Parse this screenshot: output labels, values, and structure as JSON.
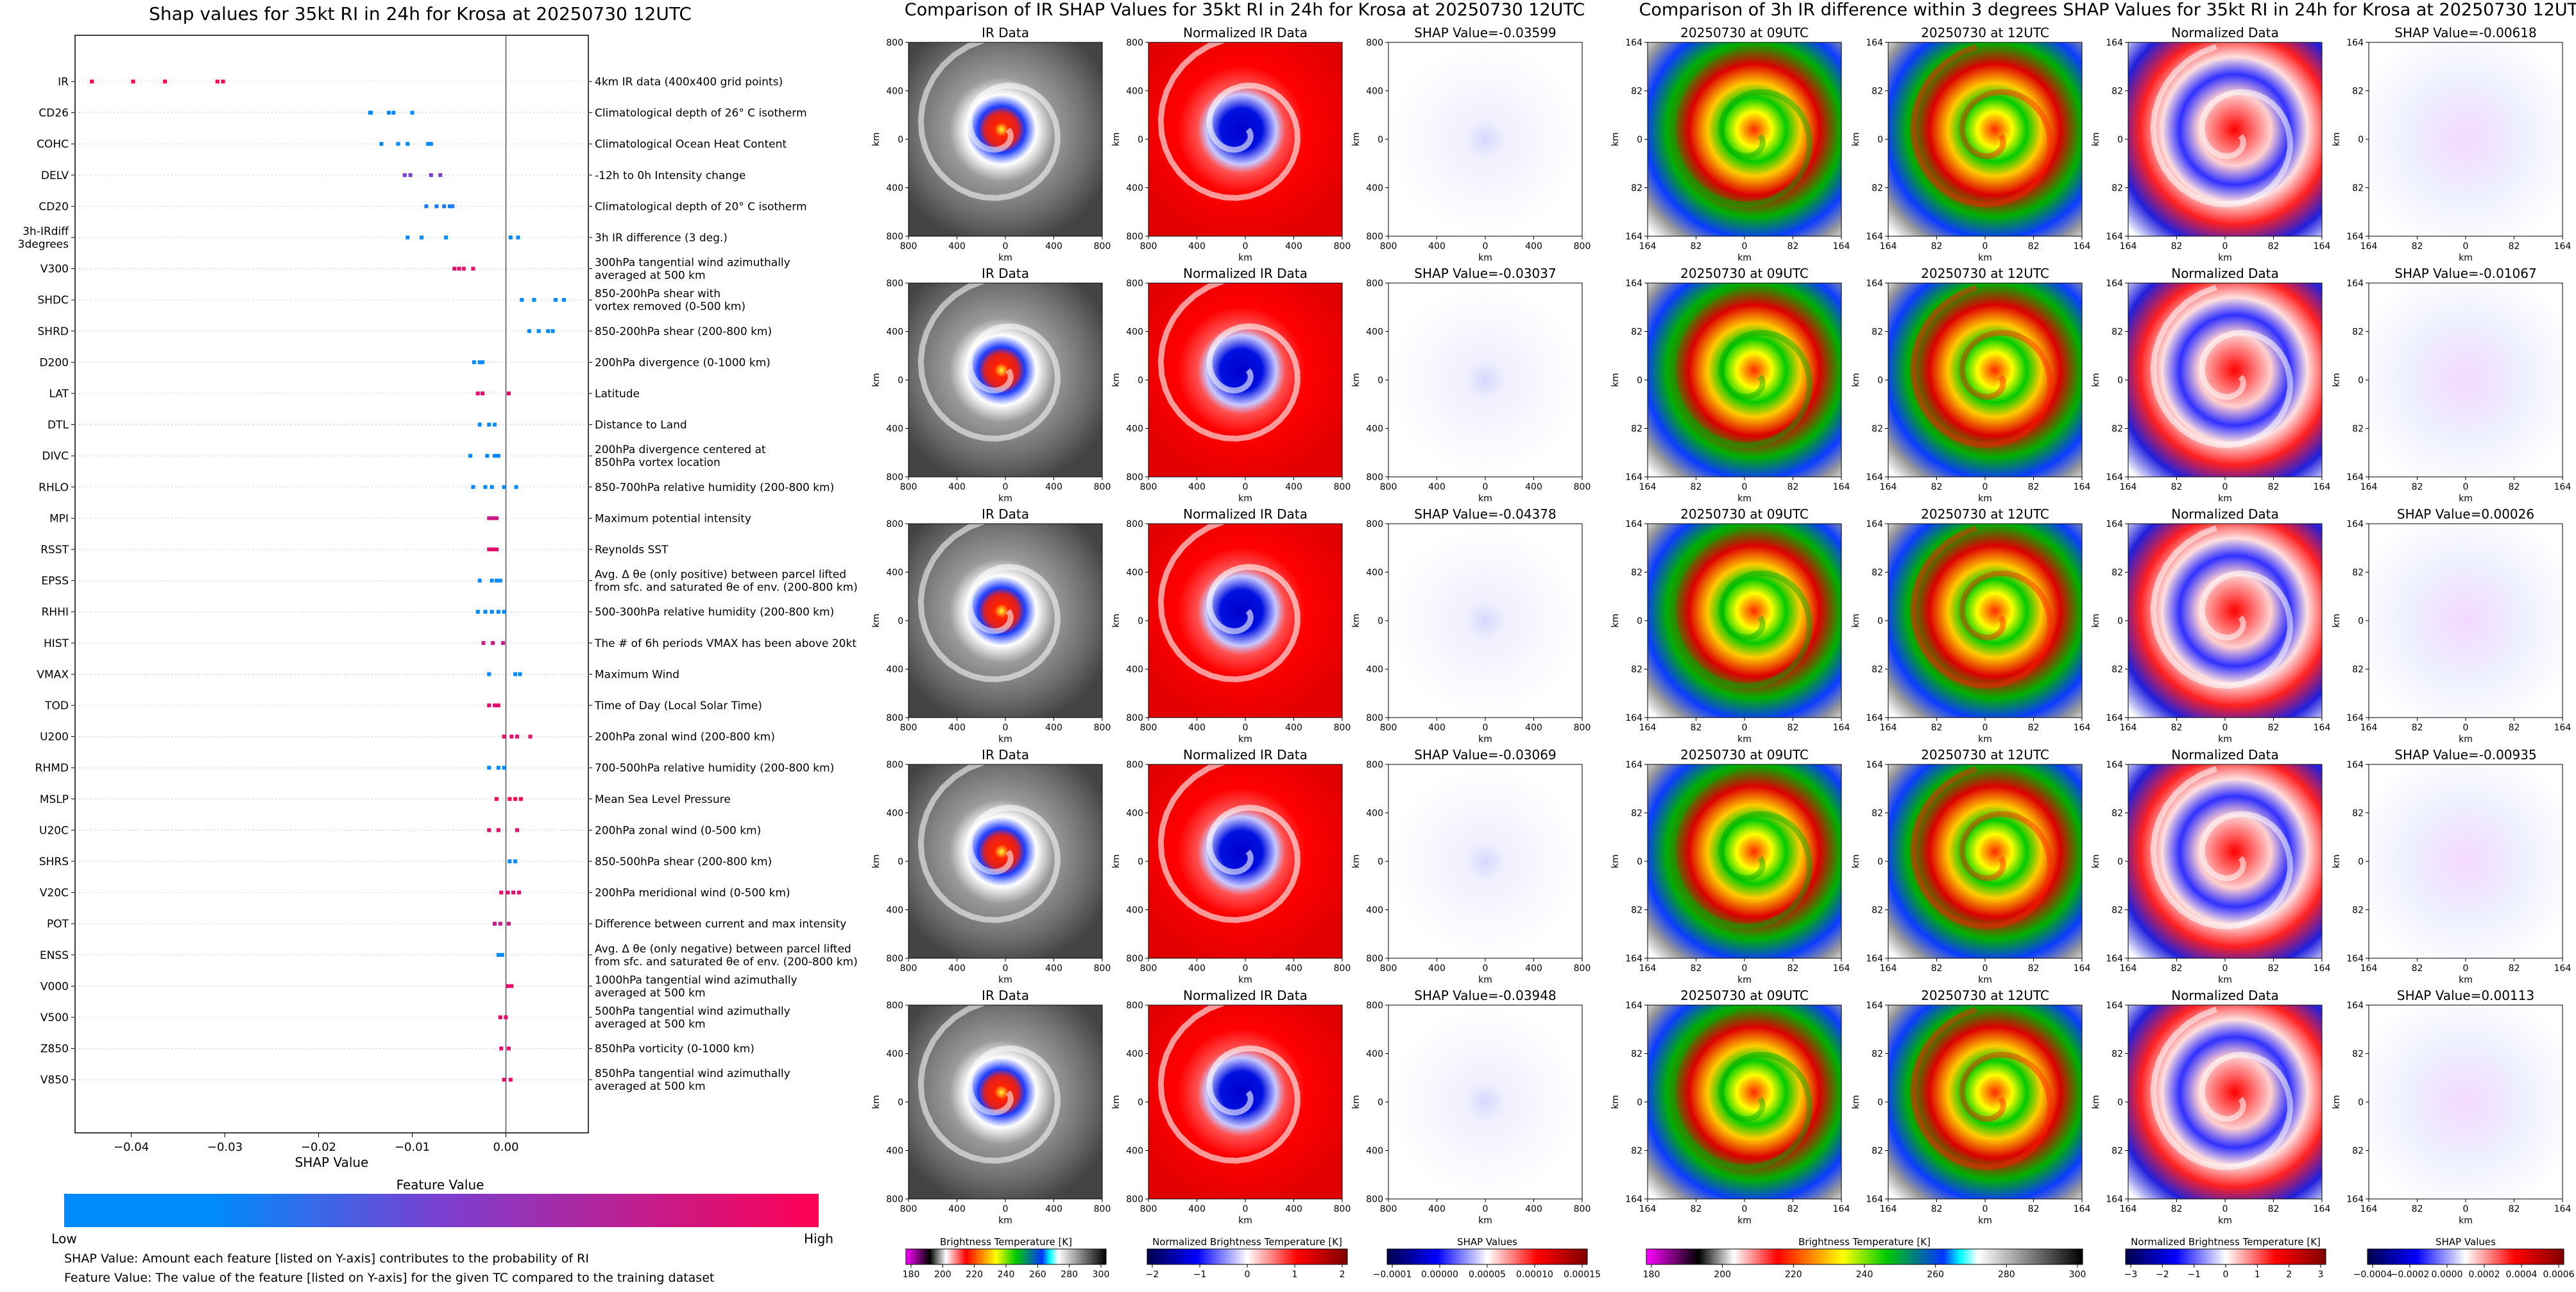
{
  "left_title": "Shap values for 35kt RI in 24h for Krosa at 20250730 12UTC",
  "mid_title": "Comparison of IR SHAP Values for 35kt RI in 24h for Krosa at 20250730 12UTC",
  "right_title": "Comparison of 3h IR difference within 3 degrees SHAP Values for 35kt RI in 24h for Krosa at 20250730 12UTC",
  "colorbar": {
    "label": "Feature Value",
    "low": "Low",
    "high": "High"
  },
  "notes": [
    "SHAP Value: Amount each feature [listed on Y-axis] contributes to the probability of RI",
    "Feature Value: The value of the feature [listed on Y-axis] for the given TC compared to the training dataset"
  ],
  "chart_data": {
    "type": "scatter",
    "title": "Shap values for 35kt RI in 24h for Krosa at 20250730 12UTC",
    "xlabel": "SHAP Value",
    "xlim": [
      -0.046,
      0.0088
    ],
    "xticks": [
      "−0.04",
      "−0.03",
      "−0.02",
      "−0.01",
      "0.00"
    ],
    "xtick_values": [
      -0.04,
      -0.03,
      -0.02,
      -0.01,
      0.0
    ],
    "colors": {
      "low": "#008afb",
      "mid": "#7a3fd0",
      "high": "#ff0053"
    },
    "features": [
      {
        "name": "IR",
        "desc": [
          "4km IR data (400x400 grid points)"
        ],
        "points": [
          [
            -0.0442,
            1
          ],
          [
            -0.0398,
            1
          ],
          [
            -0.0364,
            1
          ],
          [
            -0.0308,
            1
          ],
          [
            -0.0302,
            1
          ]
        ]
      },
      {
        "name": "CD26",
        "desc": [
          "Climatological depth of 26° C isotherm"
        ],
        "points": [
          [
            -0.0145,
            0
          ],
          [
            -0.0125,
            0
          ],
          [
            -0.012,
            0
          ],
          [
            -0.01,
            0
          ],
          [
            -0.0144,
            0
          ]
        ]
      },
      {
        "name": "COHC",
        "desc": [
          "Climatological Ocean Heat Content"
        ],
        "points": [
          [
            -0.0133,
            0
          ],
          [
            -0.0115,
            0
          ],
          [
            -0.0105,
            0
          ],
          [
            -0.0083,
            0
          ],
          [
            -0.008,
            0
          ]
        ]
      },
      {
        "name": "DELV",
        "desc": [
          "-12h to 0h Intensity change"
        ],
        "points": [
          [
            -0.0108,
            0.5
          ],
          [
            -0.0102,
            0.5
          ],
          [
            -0.008,
            0.5
          ],
          [
            -0.007,
            0.5
          ]
        ]
      },
      {
        "name": "CD20",
        "desc": [
          "Climatological depth of 20° C isotherm"
        ],
        "points": [
          [
            -0.0085,
            0.1
          ],
          [
            -0.0074,
            0.1
          ],
          [
            -0.0066,
            0.1
          ],
          [
            -0.006,
            0.1
          ],
          [
            -0.0057,
            0.1
          ]
        ]
      },
      {
        "name": "3h-IRdiff\n3degrees",
        "desc": [
          "3h IR difference (3 deg.)"
        ],
        "points": [
          [
            -0.0105,
            0
          ],
          [
            -0.009,
            0
          ],
          [
            -0.0064,
            0
          ],
          [
            0.0005,
            0
          ],
          [
            0.0013,
            0
          ]
        ]
      },
      {
        "name": "V300",
        "desc": [
          "300hPa tangential wind azimuthally",
          "averaged at 500 km"
        ],
        "points": [
          [
            -0.0055,
            0.9
          ],
          [
            -0.005,
            0.9
          ],
          [
            -0.0045,
            0.9
          ],
          [
            -0.0035,
            0.9
          ]
        ]
      },
      {
        "name": "SHDC",
        "desc": [
          "850-200hPa shear with",
          "vortex removed (0-500 km)"
        ],
        "points": [
          [
            0.0017,
            0
          ],
          [
            0.003,
            0
          ],
          [
            0.0053,
            0
          ],
          [
            0.0062,
            0
          ]
        ]
      },
      {
        "name": "SHRD",
        "desc": [
          "850-200hPa shear (200-800 km)"
        ],
        "points": [
          [
            0.0025,
            0
          ],
          [
            0.0035,
            0
          ],
          [
            0.0045,
            0
          ],
          [
            0.005,
            0
          ]
        ]
      },
      {
        "name": "D200",
        "desc": [
          "200hPa divergence (0-1000 km)"
        ],
        "points": [
          [
            -0.0034,
            0
          ],
          [
            -0.0028,
            0
          ],
          [
            -0.0025,
            0
          ]
        ]
      },
      {
        "name": "LAT",
        "desc": [
          "Latitude"
        ],
        "points": [
          [
            -0.003,
            0.9
          ],
          [
            -0.0025,
            0.9
          ],
          [
            0.0003,
            0.9
          ]
        ]
      },
      {
        "name": "DTL",
        "desc": [
          "Distance to Land"
        ],
        "points": [
          [
            -0.0028,
            0
          ],
          [
            -0.0018,
            0
          ],
          [
            -0.0012,
            0
          ]
        ]
      },
      {
        "name": "DIVC",
        "desc": [
          "200hPa divergence centered at",
          "850hPa vortex location"
        ],
        "points": [
          [
            -0.0038,
            0
          ],
          [
            -0.002,
            0
          ],
          [
            -0.0012,
            0
          ],
          [
            -0.0008,
            0
          ]
        ]
      },
      {
        "name": "RHLO",
        "desc": [
          "850-700hPa relative humidity (200-800 km)"
        ],
        "points": [
          [
            -0.0035,
            0
          ],
          [
            -0.0022,
            0
          ],
          [
            -0.0015,
            0
          ],
          [
            -0.0002,
            0
          ],
          [
            0.0011,
            0
          ]
        ]
      },
      {
        "name": "MPI",
        "desc": [
          "Maximum potential intensity"
        ],
        "points": [
          [
            -0.0018,
            0.8
          ],
          [
            -0.0014,
            0.8
          ],
          [
            -0.001,
            0.8
          ]
        ]
      },
      {
        "name": "RSST",
        "desc": [
          "Reynolds SST"
        ],
        "points": [
          [
            -0.0018,
            0.9
          ],
          [
            -0.0014,
            0.9
          ],
          [
            -0.001,
            0.9
          ]
        ]
      },
      {
        "name": "EPSS",
        "desc": [
          "Avg. Δ θe (only positive) between parcel lifted",
          "from sfc. and saturated θe of env. (200-800 km)"
        ],
        "points": [
          [
            -0.0028,
            0
          ],
          [
            -0.0015,
            0
          ],
          [
            -0.001,
            0
          ],
          [
            -0.0006,
            0
          ]
        ]
      },
      {
        "name": "RHHI",
        "desc": [
          "500-300hPa relative humidity (200-800 km)"
        ],
        "points": [
          [
            -0.003,
            0
          ],
          [
            -0.0022,
            0
          ],
          [
            -0.0015,
            0
          ],
          [
            -0.0008,
            0
          ],
          [
            -0.0002,
            0
          ]
        ]
      },
      {
        "name": "HIST",
        "desc": [
          "The # of 6h periods VMAX has been above 20kt"
        ],
        "points": [
          [
            -0.0024,
            0.8
          ],
          [
            -0.0014,
            0.8
          ],
          [
            -0.0003,
            0.8
          ]
        ]
      },
      {
        "name": "VMAX",
        "desc": [
          "Maximum Wind"
        ],
        "points": [
          [
            -0.0018,
            0
          ],
          [
            0.001,
            0
          ],
          [
            0.0015,
            0
          ]
        ]
      },
      {
        "name": "TOD",
        "desc": [
          "Time of Day (Local Solar Time)"
        ],
        "points": [
          [
            -0.0018,
            0.9
          ],
          [
            -0.0012,
            0.9
          ],
          [
            -0.0008,
            0.9
          ]
        ]
      },
      {
        "name": "U200",
        "desc": [
          "200hPa zonal wind (200-800 km)"
        ],
        "points": [
          [
            -0.0002,
            0.9
          ],
          [
            0.0006,
            0.9
          ],
          [
            0.0012,
            0.9
          ],
          [
            0.0026,
            0.9
          ]
        ]
      },
      {
        "name": "RHMD",
        "desc": [
          "700-500hPa relative humidity (200-800 km)"
        ],
        "points": [
          [
            -0.0018,
            0
          ],
          [
            -0.0008,
            0
          ],
          [
            -0.0002,
            0
          ]
        ]
      },
      {
        "name": "MSLP",
        "desc": [
          "Mean Sea Level Pressure"
        ],
        "points": [
          [
            -0.001,
            1
          ],
          [
            0.0004,
            1
          ],
          [
            0.001,
            1
          ],
          [
            0.0016,
            1
          ]
        ]
      },
      {
        "name": "U20C",
        "desc": [
          "200hPa zonal wind (0-500 km)"
        ],
        "points": [
          [
            -0.0018,
            0.9
          ],
          [
            -0.0008,
            0.9
          ],
          [
            0.0012,
            0.9
          ]
        ]
      },
      {
        "name": "SHRS",
        "desc": [
          "850-500hPa shear (200-800 km)"
        ],
        "points": [
          [
            0.0004,
            0
          ],
          [
            0.001,
            0
          ]
        ]
      },
      {
        "name": "V20C",
        "desc": [
          "200hPa meridional wind (0-500 km)"
        ],
        "points": [
          [
            -0.0005,
            0.9
          ],
          [
            0.0002,
            0.9
          ],
          [
            0.0008,
            0.9
          ],
          [
            0.0014,
            0.9
          ]
        ]
      },
      {
        "name": "POT",
        "desc": [
          "Difference between current and max intensity"
        ],
        "points": [
          [
            -0.0012,
            0.8
          ],
          [
            -0.0006,
            0.8
          ],
          [
            0.0003,
            0.8
          ]
        ]
      },
      {
        "name": "ENSS",
        "desc": [
          "Avg. Δ θe (only negative) between parcel lifted",
          "from sfc. and saturated θe of env. (200-800 km)"
        ],
        "points": [
          [
            -0.0008,
            0
          ],
          [
            -0.0004,
            0
          ]
        ]
      },
      {
        "name": "V000",
        "desc": [
          "1000hPa tangential wind azimuthally",
          "averaged at 500 km"
        ],
        "points": [
          [
            0.0002,
            0.9
          ],
          [
            0.0006,
            0.9
          ]
        ]
      },
      {
        "name": "V500",
        "desc": [
          "500hPa tangential wind azimuthally",
          "averaged at 500 km"
        ],
        "points": [
          [
            -0.0006,
            0.9
          ],
          [
            0.0,
            0.9
          ]
        ]
      },
      {
        "name": "Z850",
        "desc": [
          "850hPa vorticity (0-1000 km)"
        ],
        "points": [
          [
            -0.0005,
            0.9
          ],
          [
            0.0003,
            0.9
          ]
        ]
      },
      {
        "name": "V850",
        "desc": [
          "850hPa tangential wind azimuthally",
          "averaged at 500 km"
        ],
        "points": [
          [
            -0.0002,
            0.9
          ],
          [
            0.0005,
            0.9
          ]
        ]
      }
    ]
  },
  "ir_panels": {
    "rows": [
      {
        "ir_title": "IR Data",
        "norm_title": "Normalized IR Data",
        "shap_title": "SHAP Value=-0.03599"
      },
      {
        "ir_title": "IR Data",
        "norm_title": "Normalized IR Data",
        "shap_title": "SHAP Value=-0.03037"
      },
      {
        "ir_title": "IR Data",
        "norm_title": "Normalized IR Data",
        "shap_title": "SHAP Value=-0.04378"
      },
      {
        "ir_title": "IR Data",
        "norm_title": "Normalized IR Data",
        "shap_title": "SHAP Value=-0.03069"
      },
      {
        "ir_title": "IR Data",
        "norm_title": "Normalized IR Data",
        "shap_title": "SHAP Value=-0.03948"
      }
    ],
    "axis_unit": "km",
    "yticks": [
      "800",
      "400",
      "0",
      "400",
      "800"
    ],
    "xticks": [
      "800",
      "400",
      "0",
      "400",
      "800"
    ],
    "colorbars": [
      {
        "label": "Brightness Temperature [K]",
        "ticks": [
          "180",
          "200",
          "220",
          "240",
          "260",
          "280",
          "300"
        ]
      },
      {
        "label": "Normalized Brightness Temperature [K]",
        "ticks": [
          "−2",
          "−1",
          "0",
          "1",
          "2"
        ]
      },
      {
        "label": "SHAP Values",
        "ticks": [
          "−0.0001",
          "0.00000",
          "0.00005",
          "0.00010",
          "0.00015"
        ]
      }
    ]
  },
  "diff_panels": {
    "rows": [
      {
        "t1": "20250730 at 09UTC",
        "t2": "20250730 at 12UTC",
        "norm": "Normalized Data",
        "shap": "SHAP Value=-0.00618"
      },
      {
        "t1": "20250730 at 09UTC",
        "t2": "20250730 at 12UTC",
        "norm": "Normalized Data",
        "shap": "SHAP Value=-0.01067"
      },
      {
        "t1": "20250730 at 09UTC",
        "t2": "20250730 at 12UTC",
        "norm": "Normalized Data",
        "shap": "SHAP Value=0.00026"
      },
      {
        "t1": "20250730 at 09UTC",
        "t2": "20250730 at 12UTC",
        "norm": "Normalized Data",
        "shap": "SHAP Value=-0.00935"
      },
      {
        "t1": "20250730 at 09UTC",
        "t2": "20250730 at 12UTC",
        "norm": "Normalized Data",
        "shap": "SHAP Value=0.00113"
      }
    ],
    "axis_unit": "km",
    "yticks": [
      "164",
      "82",
      "0",
      "82",
      "164"
    ],
    "xticks": [
      "164",
      "82",
      "0",
      "82",
      "164"
    ],
    "colorbars": [
      {
        "label": "Brightness Temperature [K]",
        "ticks": [
          "180",
          "200",
          "220",
          "240",
          "260",
          "280",
          "300"
        ]
      },
      {
        "label": "Normalized Brightness Temperature [K]",
        "ticks": [
          "−3",
          "−2",
          "−1",
          "0",
          "1",
          "2",
          "3"
        ]
      },
      {
        "label": "SHAP Values",
        "ticks": [
          "−0.0004",
          "−0.0002",
          "0.0000",
          "0.0002",
          "0.0004",
          "0.0006"
        ]
      }
    ]
  }
}
